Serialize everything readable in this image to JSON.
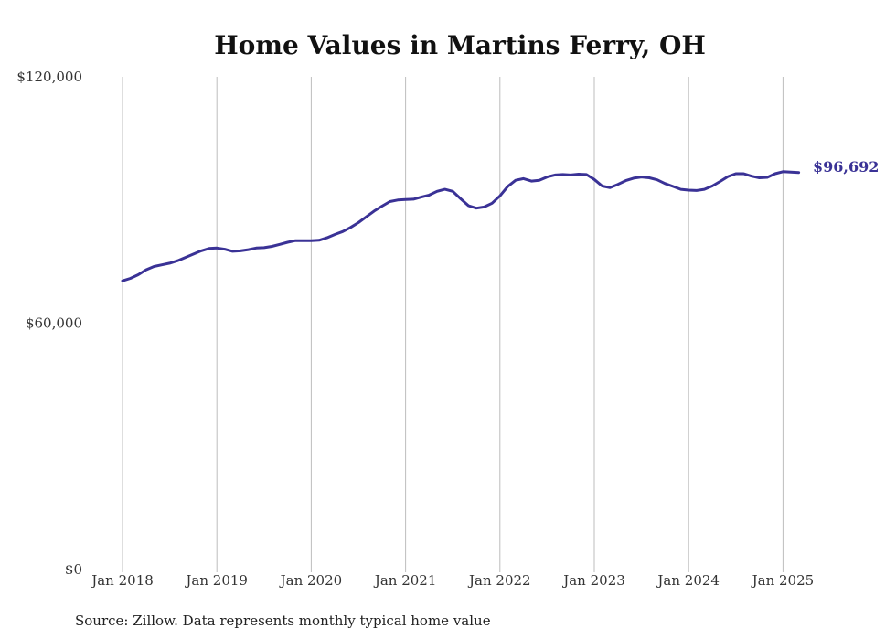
{
  "chart_data": {
    "type": "line",
    "title": "Home Values in Martins Ferry, OH",
    "source": "Source: Zillow. Data represents monthly typical home value",
    "xlabel": "",
    "ylabel": "",
    "ylim": [
      0,
      120000
    ],
    "y_ticks": [
      {
        "value": 0,
        "label": "$0"
      },
      {
        "value": 60000,
        "label": "$60,000"
      },
      {
        "value": 120000,
        "label": "$120,000"
      }
    ],
    "x_ticks": [
      {
        "value": "2018-01",
        "label": "Jan 2018"
      },
      {
        "value": "2019-01",
        "label": "Jan 2019"
      },
      {
        "value": "2020-01",
        "label": "Jan 2020"
      },
      {
        "value": "2021-01",
        "label": "Jan 2021"
      },
      {
        "value": "2022-01",
        "label": "Jan 2022"
      },
      {
        "value": "2023-01",
        "label": "Jan 2023"
      },
      {
        "value": "2024-01",
        "label": "Jan 2024"
      },
      {
        "value": "2025-01",
        "label": "Jan 2025"
      }
    ],
    "grid": "vertical lines at Jan of each year",
    "end_label": "$96,692",
    "series": [
      {
        "color": "#3a3296",
        "x": [
          "2018-01",
          "2018-02",
          "2018-03",
          "2018-04",
          "2018-05",
          "2018-06",
          "2018-07",
          "2018-08",
          "2018-09",
          "2018-10",
          "2018-11",
          "2018-12",
          "2019-01",
          "2019-02",
          "2019-03",
          "2019-04",
          "2019-05",
          "2019-06",
          "2019-07",
          "2019-08",
          "2019-09",
          "2019-10",
          "2019-11",
          "2019-12",
          "2020-01",
          "2020-02",
          "2020-03",
          "2020-04",
          "2020-05",
          "2020-06",
          "2020-07",
          "2020-08",
          "2020-09",
          "2020-10",
          "2020-11",
          "2020-12",
          "2021-01",
          "2021-02",
          "2021-03",
          "2021-04",
          "2021-05",
          "2021-06",
          "2021-07",
          "2021-08",
          "2021-09",
          "2021-10",
          "2021-11",
          "2021-12",
          "2022-01",
          "2022-02",
          "2022-03",
          "2022-04",
          "2022-05",
          "2022-06",
          "2022-07",
          "2022-08",
          "2022-09",
          "2022-10",
          "2022-11",
          "2022-12",
          "2023-01",
          "2023-02",
          "2023-03",
          "2023-04",
          "2023-05",
          "2023-06",
          "2023-07",
          "2023-08",
          "2023-09",
          "2023-10",
          "2023-11",
          "2023-12",
          "2024-01",
          "2024-02",
          "2024-03",
          "2024-04",
          "2024-05",
          "2024-06",
          "2024-07",
          "2024-08",
          "2024-09",
          "2024-10",
          "2024-11",
          "2024-12",
          "2025-01",
          "2025-02",
          "2025-03"
        ],
        "values": [
          70300,
          70900,
          71800,
          73000,
          73800,
          74200,
          74600,
          75200,
          76000,
          76800,
          77600,
          78200,
          78300,
          78000,
          77500,
          77600,
          77900,
          78300,
          78400,
          78700,
          79200,
          79700,
          80100,
          80100,
          80100,
          80200,
          80800,
          81600,
          82300,
          83300,
          84500,
          85900,
          87300,
          88500,
          89600,
          90000,
          90100,
          90200,
          90700,
          91200,
          92100,
          92600,
          92100,
          90300,
          88600,
          88000,
          88300,
          89200,
          91000,
          93300,
          94800,
          95200,
          94600,
          94800,
          95600,
          96100,
          96200,
          96100,
          96300,
          96200,
          95000,
          93400,
          93000,
          93800,
          94700,
          95300,
          95600,
          95400,
          94900,
          94000,
          93300,
          92600,
          92400,
          92300,
          92600,
          93400,
          94500,
          95700,
          96400,
          96400,
          95800,
          95400,
          95500,
          96400,
          96900,
          96800,
          96692
        ]
      }
    ]
  }
}
